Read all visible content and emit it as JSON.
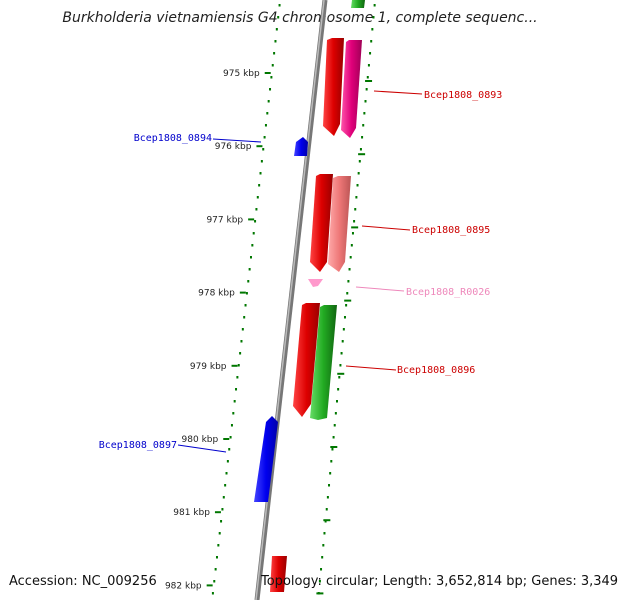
{
  "title": "Burkholderia vietnamiensis G4 chromosome 1, complete sequenc...",
  "footer": {
    "accession": "Accession: NC_009256",
    "summary": "Topology: circular; Length: 3,652,814 bp; Genes: 3,349"
  },
  "colors": {
    "forward_label": "#cc0000",
    "reverse_label": "#0000cc",
    "rna_label": "#ee88bb",
    "ticks": "#007700",
    "backbone": "#888888"
  },
  "ticks": [
    "975 kbp",
    "976 kbp",
    "977 kbp",
    "978 kbp",
    "979 kbp",
    "980 kbp",
    "981 kbp",
    "982 kbp"
  ],
  "genes": [
    {
      "label": "Bcep1808_0893",
      "strand": "forward"
    },
    {
      "label": "Bcep1808_0894",
      "strand": "reverse"
    },
    {
      "label": "Bcep1808_0895",
      "strand": "forward"
    },
    {
      "label": "Bcep1808_R0026",
      "strand": "rna"
    },
    {
      "label": "Bcep1808_0896",
      "strand": "forward"
    },
    {
      "label": "Bcep1808_0897",
      "strand": "reverse"
    }
  ]
}
